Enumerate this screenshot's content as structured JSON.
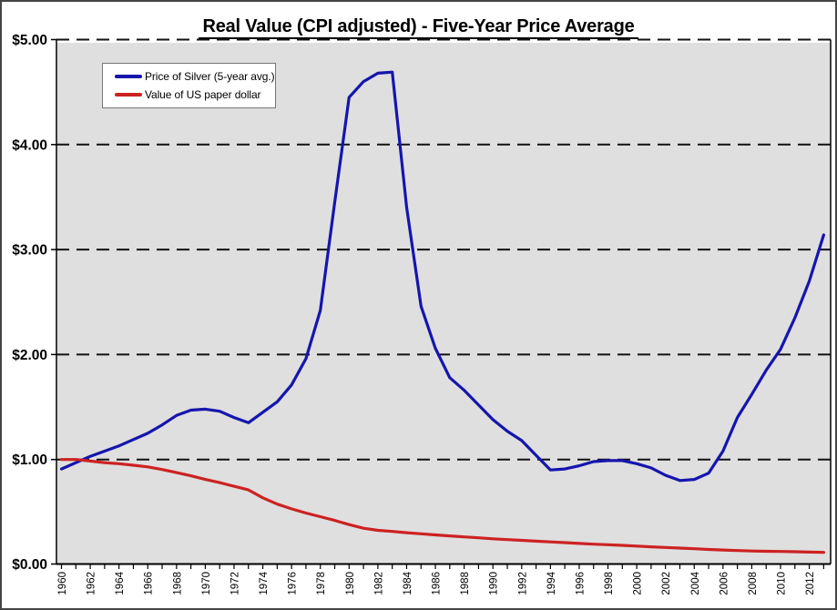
{
  "colors": {
    "plot_bg": "#DFDFDF",
    "grid": "#111111",
    "axis": "#000000",
    "silver_line": "#1515AE",
    "dollar_line": "#CC2222"
  },
  "legend": {
    "items": [
      {
        "id": "silver",
        "label": "Price of Silver (5-year avg.)",
        "color": "#1515AE"
      },
      {
        "id": "dollar",
        "label": "Value of US paper dollar",
        "color": "#CC2222"
      }
    ]
  },
  "chart_data": {
    "type": "line",
    "title": "Real Value (CPI adjusted) - Five-Year Price Average",
    "xlabel": "",
    "ylabel": "",
    "x_range": [
      1960,
      2013
    ],
    "y_range": [
      0,
      5
    ],
    "grid": "dashed horizontal lines at each $1.00",
    "legend_position": "top-left inside plot",
    "y_ticks": [
      {
        "label": "$0.00",
        "value": 0
      },
      {
        "label": "$1.00",
        "value": 1
      },
      {
        "label": "$2.00",
        "value": 2
      },
      {
        "label": "$3.00",
        "value": 3
      },
      {
        "label": "$4.00",
        "value": 4
      },
      {
        "label": "$5.00",
        "value": 5
      }
    ],
    "x_tick_years": [
      1960,
      1962,
      1964,
      1966,
      1968,
      1970,
      1972,
      1974,
      1976,
      1978,
      1980,
      1982,
      1984,
      1986,
      1988,
      1990,
      1992,
      1994,
      1996,
      1998,
      2000,
      2002,
      2004,
      2006,
      2008,
      2010,
      2012
    ],
    "x": [
      1960,
      1961,
      1962,
      1963,
      1964,
      1965,
      1966,
      1967,
      1968,
      1969,
      1970,
      1971,
      1972,
      1973,
      1974,
      1975,
      1976,
      1977,
      1978,
      1979,
      1980,
      1981,
      1982,
      1983,
      1984,
      1985,
      1986,
      1987,
      1988,
      1989,
      1990,
      1991,
      1992,
      1993,
      1994,
      1995,
      1996,
      1997,
      1998,
      1999,
      2000,
      2001,
      2002,
      2003,
      2004,
      2005,
      2006,
      2007,
      2008,
      2009,
      2010,
      2011,
      2012,
      2013
    ],
    "series": [
      {
        "id": "silver",
        "name": "Price of Silver (5-year avg.)",
        "color": "#1515AE",
        "values": [
          0.91,
          0.97,
          1.03,
          1.08,
          1.13,
          1.19,
          1.25,
          1.33,
          1.42,
          1.47,
          1.48,
          1.46,
          1.4,
          1.35,
          1.45,
          1.55,
          1.71,
          1.96,
          2.42,
          3.45,
          4.45,
          4.6,
          4.68,
          4.69,
          3.4,
          2.46,
          2.06,
          1.78,
          1.66,
          1.52,
          1.38,
          1.27,
          1.18,
          1.04,
          0.9,
          0.91,
          0.94,
          0.98,
          0.99,
          0.99,
          0.96,
          0.92,
          0.85,
          0.8,
          0.81,
          0.87,
          1.08,
          1.4,
          1.62,
          1.85,
          2.05,
          2.35,
          2.7,
          3.14
        ]
      },
      {
        "id": "dollar",
        "name": "Value of US paper dollar",
        "color": "#CC2222",
        "values": [
          1.0,
          1.0,
          0.985,
          0.97,
          0.96,
          0.945,
          0.93,
          0.905,
          0.875,
          0.845,
          0.81,
          0.78,
          0.745,
          0.71,
          0.635,
          0.575,
          0.53,
          0.49,
          0.455,
          0.42,
          0.38,
          0.345,
          0.325,
          0.315,
          0.303,
          0.292,
          0.282,
          0.272,
          0.263,
          0.254,
          0.245,
          0.237,
          0.23,
          0.222,
          0.215,
          0.208,
          0.2,
          0.193,
          0.188,
          0.182,
          0.175,
          0.168,
          0.162,
          0.156,
          0.15,
          0.143,
          0.138,
          0.133,
          0.128,
          0.126,
          0.124,
          0.121,
          0.118,
          0.115
        ]
      }
    ]
  }
}
